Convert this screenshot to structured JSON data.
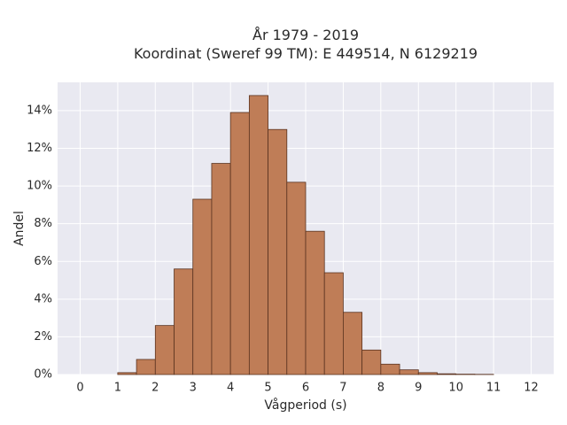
{
  "chart_data": {
    "type": "bar",
    "title_line1": "År 1979 - 2019",
    "title_line2": "Koordinat (Sweref 99 TM): E 449514, N 6129219",
    "xlabel": "Vågperiod (s)",
    "ylabel": "Andel",
    "xlim": [
      -0.6,
      12.6
    ],
    "ylim": [
      0,
      15.5
    ],
    "x_ticks": [
      0,
      1,
      2,
      3,
      4,
      5,
      6,
      7,
      8,
      9,
      10,
      11,
      12
    ],
    "y_ticks": [
      0,
      2,
      4,
      6,
      8,
      10,
      12,
      14
    ],
    "y_tick_labels": [
      "0%",
      "2%",
      "4%",
      "6%",
      "8%",
      "10%",
      "12%",
      "14%"
    ],
    "bin_width": 0.5,
    "bins": [
      {
        "start": 1.0,
        "value": 0.1
      },
      {
        "start": 1.5,
        "value": 0.8
      },
      {
        "start": 2.0,
        "value": 2.6
      },
      {
        "start": 2.5,
        "value": 5.6
      },
      {
        "start": 3.0,
        "value": 9.3
      },
      {
        "start": 3.5,
        "value": 11.2
      },
      {
        "start": 4.0,
        "value": 13.9
      },
      {
        "start": 4.5,
        "value": 14.8
      },
      {
        "start": 5.0,
        "value": 13.0
      },
      {
        "start": 5.5,
        "value": 10.2
      },
      {
        "start": 6.0,
        "value": 7.6
      },
      {
        "start": 6.5,
        "value": 5.4
      },
      {
        "start": 7.0,
        "value": 3.3
      },
      {
        "start": 7.5,
        "value": 1.3
      },
      {
        "start": 8.0,
        "value": 0.55
      },
      {
        "start": 8.5,
        "value": 0.25
      },
      {
        "start": 9.0,
        "value": 0.1
      },
      {
        "start": 9.5,
        "value": 0.04
      },
      {
        "start": 10.0,
        "value": 0.02
      },
      {
        "start": 10.5,
        "value": 0.01
      }
    ],
    "grid": true,
    "colors": {
      "bar_fill": "#bf7d57",
      "bar_stroke": "#5a3320",
      "plot_background": "#e9e9f1",
      "grid": "#ffffff"
    }
  }
}
